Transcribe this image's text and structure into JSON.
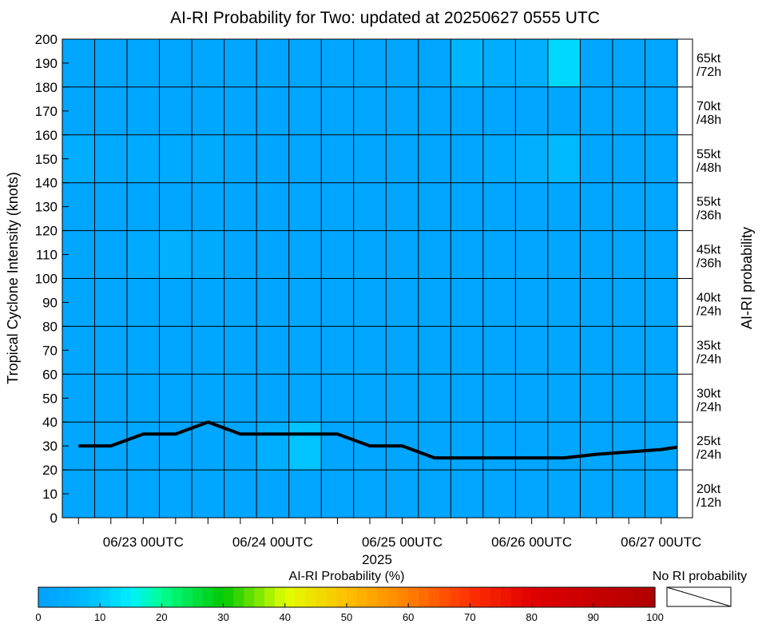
{
  "chart_data": {
    "type": "heatmap",
    "title": "AI-RI Probability for Two: updated at 20250627 0555 UTC",
    "ylabel": "Tropical Cyclone Intensity (knots)",
    "right_label": "AI-RI probability",
    "xlabel": "2025",
    "ylim": [
      0,
      200
    ],
    "y_ticks": [
      "0",
      "10",
      "20",
      "30",
      "40",
      "50",
      "60",
      "70",
      "80",
      "90",
      "100",
      "110",
      "120",
      "130",
      "140",
      "150",
      "160",
      "170",
      "180",
      "190",
      "200"
    ],
    "x_ticks": [
      {
        "label": "06/23 00UTC",
        "col": 2.5
      },
      {
        "label": "06/24 00UTC",
        "col": 6.5
      },
      {
        "label": "06/25 00UTC",
        "col": 10.5
      },
      {
        "label": "06/26 00UTC",
        "col": 14.5
      },
      {
        "label": "06/27 00UTC",
        "col": 18.5
      }
    ],
    "ri_rows": [
      {
        "line1": "20kt",
        "line2": "/12h"
      },
      {
        "line1": "25kt",
        "line2": "/24h"
      },
      {
        "line1": "30kt",
        "line2": "/24h"
      },
      {
        "line1": "35kt",
        "line2": "/24h"
      },
      {
        "line1": "40kt",
        "line2": "/24h"
      },
      {
        "line1": "45kt",
        "line2": "/36h"
      },
      {
        "line1": "55kt",
        "line2": "/36h"
      },
      {
        "line1": "55kt",
        "line2": "/48h"
      },
      {
        "line1": "70kt",
        "line2": "/48h"
      },
      {
        "line1": "65kt",
        "line2": "/72h"
      }
    ],
    "n_cols": 19,
    "probability_grid": [
      [
        2,
        2,
        2,
        2,
        2,
        2,
        2,
        2,
        2,
        2,
        2,
        2,
        2,
        2,
        2,
        2,
        2,
        2,
        2
      ],
      [
        2,
        2,
        2,
        2,
        2,
        2,
        5,
        9,
        2,
        2,
        2,
        2,
        2,
        2,
        2,
        2,
        2,
        2,
        2
      ],
      [
        2,
        2,
        2,
        2,
        2,
        2,
        2,
        2,
        2,
        2,
        2,
        2,
        2,
        2,
        2,
        2,
        2,
        2,
        2
      ],
      [
        2,
        2,
        2,
        2,
        2,
        2,
        2,
        2,
        2,
        2,
        2,
        2,
        2,
        2,
        2,
        2,
        2,
        2,
        2
      ],
      [
        2,
        2,
        2,
        2,
        2,
        2,
        2,
        2,
        2,
        2,
        2,
        2,
        2,
        2,
        2,
        2,
        2,
        2,
        2
      ],
      [
        2,
        2,
        3,
        5,
        3,
        2,
        2,
        2,
        2,
        2,
        2,
        2,
        2,
        2,
        2,
        2,
        2,
        2,
        2
      ],
      [
        2,
        2,
        2,
        2,
        2,
        2,
        2,
        2,
        2,
        2,
        2,
        2,
        2,
        2,
        2,
        2,
        2,
        2,
        2
      ],
      [
        4,
        3,
        3,
        3,
        3,
        2,
        2,
        2,
        2,
        2,
        2,
        2,
        2,
        3,
        5,
        7,
        2,
        2,
        2
      ],
      [
        2,
        2,
        2,
        2,
        2,
        2,
        2,
        2,
        2,
        2,
        2,
        2,
        2,
        2,
        2,
        2,
        2,
        2,
        2
      ],
      [
        2,
        2,
        2,
        2,
        2,
        2,
        2,
        2,
        2,
        2,
        2,
        2,
        6,
        4,
        5,
        12,
        2,
        2,
        2
      ]
    ],
    "intensity_line": {
      "x_col": [
        0.5,
        1.5,
        2.5,
        3.5,
        4.5,
        5.5,
        6.5,
        7.5,
        8.5,
        9.5,
        10.5,
        11.5,
        12.5,
        13.5,
        14.5,
        15.5,
        16.5,
        17.5,
        18.5,
        19.0
      ],
      "y": [
        30,
        30,
        35,
        35,
        40,
        35,
        35,
        35,
        35,
        30,
        30,
        25,
        25,
        25,
        25,
        25,
        26.5,
        27.5,
        28.5,
        29.5
      ]
    },
    "colorbar": {
      "label": "AI-RI Probability (%)",
      "min": 0,
      "max": 100,
      "ticks": [
        "0",
        "10",
        "20",
        "30",
        "40",
        "50",
        "60",
        "70",
        "80",
        "90",
        "100"
      ],
      "colors": [
        "#00a0ff",
        "#00b4ff",
        "#00cfff",
        "#00f0ff",
        "#00ff9a",
        "#00e040",
        "#20c800",
        "#a0e600",
        "#f0ff00",
        "#ffd000",
        "#ff9a00",
        "#ff5a00",
        "#ff1e00",
        "#d80000",
        "#b00000"
      ],
      "no_ri_label": "No RI probability"
    }
  }
}
